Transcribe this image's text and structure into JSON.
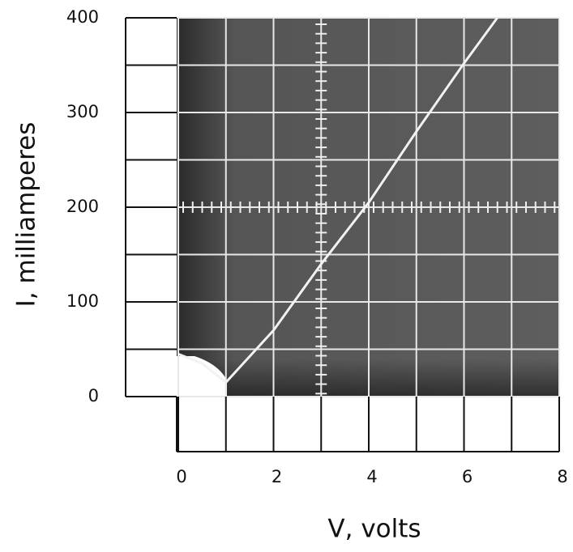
{
  "chart_data": {
    "type": "line",
    "x_label": "V, volts",
    "y_label": "I, milliamperes",
    "x": [
      0,
      0.5,
      1,
      2,
      3,
      4,
      5,
      6,
      6.7
    ],
    "values": [
      45,
      35,
      15,
      70,
      140,
      205,
      280,
      352,
      400
    ],
    "color": "#f2f2f2",
    "xlim": [
      0,
      8
    ],
    "ylim": [
      0,
      400
    ],
    "xticks": [
      0,
      2,
      4,
      6,
      8
    ],
    "yticks": [
      0,
      100,
      200,
      300,
      400
    ],
    "grid": true
  }
}
